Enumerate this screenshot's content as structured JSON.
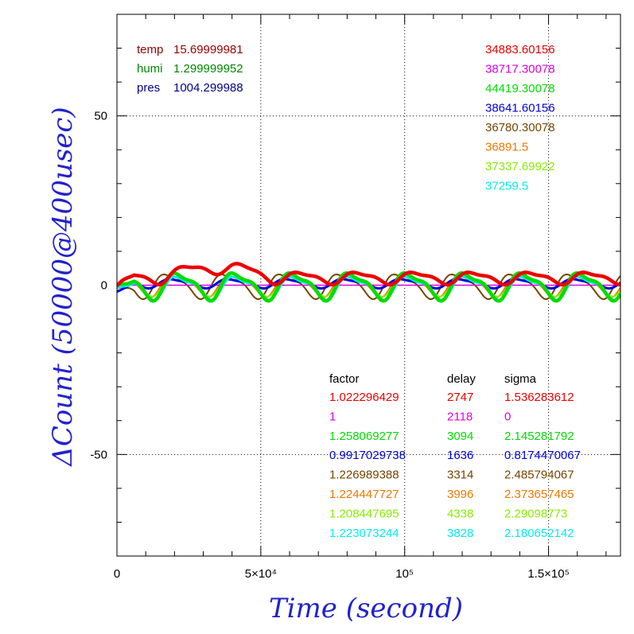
{
  "chart_data": {
    "type": "line",
    "xlabel": "Time (second)",
    "ylabel": "ΔCount (50000@400usec)",
    "xlim": [
      0,
      175000
    ],
    "ylim": [
      -80,
      80
    ],
    "grid": true,
    "x_ticks": [
      {
        "value": 0,
        "label": "0"
      },
      {
        "value": 50000,
        "label": "5×10⁴"
      },
      {
        "value": 100000,
        "label": "10⁵"
      },
      {
        "value": 150000,
        "label": "1.5×10⁵"
      }
    ],
    "y_ticks": [
      {
        "value": 50,
        "label": "50"
      },
      {
        "value": 0,
        "label": "0"
      },
      {
        "value": -50,
        "label": "-50"
      }
    ],
    "environment": [
      {
        "label": "temp",
        "value": "15.69999981",
        "color": "#990000"
      },
      {
        "label": "humi",
        "value": "1.299999952",
        "color": "#008800"
      },
      {
        "label": "pres",
        "value": "1004.299988",
        "color": "#000088"
      }
    ],
    "param_headers": {
      "factor": "factor",
      "delay": "delay",
      "sigma": "sigma"
    },
    "series": [
      {
        "mean": "34883.60156",
        "factor": "1.022296429",
        "delay": "2747",
        "sigma": "1.536283612",
        "color": "#ee0000",
        "amp": 1.6,
        "base": 2.2,
        "width": 4.5,
        "phase": 0.3
      },
      {
        "mean": "38717.30078",
        "factor": "1",
        "delay": "2118",
        "sigma": "0",
        "color": "#dd00dd",
        "amp": 0.0,
        "base": 0.0,
        "width": 1.5,
        "phase": 0.0
      },
      {
        "mean": "44419.30078",
        "factor": "1.258069277",
        "delay": "3094",
        "sigma": "2.145281792",
        "color": "#00dd00",
        "amp": 3.6,
        "base": 0.0,
        "width": 4.5,
        "phase": 1.0
      },
      {
        "mean": "38641.60156",
        "factor": "0.9917029738",
        "delay": "1636",
        "sigma": "0.8174470067",
        "color": "#0000dd",
        "amp": 1.2,
        "base": 0.6,
        "width": 3.0,
        "phase": 1.5
      },
      {
        "mean": "36780.30078",
        "factor": "1.226989388",
        "delay": "3314",
        "sigma": "2.485794067",
        "color": "#774400",
        "amp": 3.2,
        "base": 0.0,
        "width": 2.0,
        "phase": 2.1
      },
      {
        "mean": "36891.5",
        "factor": "1.224447727",
        "delay": "3996",
        "sigma": "2.373657465",
        "color": "#ee7700",
        "amp": 2.8,
        "base": 0.0,
        "width": 2.0,
        "phase": 1.3
      },
      {
        "mean": "37337.69922",
        "factor": "1.208447695",
        "delay": "4338",
        "sigma": "2.29098773",
        "color": "#88ee00",
        "amp": 2.6,
        "base": 0.0,
        "width": 2.0,
        "phase": 1.1
      },
      {
        "mean": "37259.5",
        "factor": "1.223073244",
        "delay": "3828",
        "sigma": "2.180652142",
        "color": "#00eeee",
        "amp": 3.0,
        "base": -0.5,
        "width": 2.5,
        "phase": 0.9
      }
    ]
  }
}
